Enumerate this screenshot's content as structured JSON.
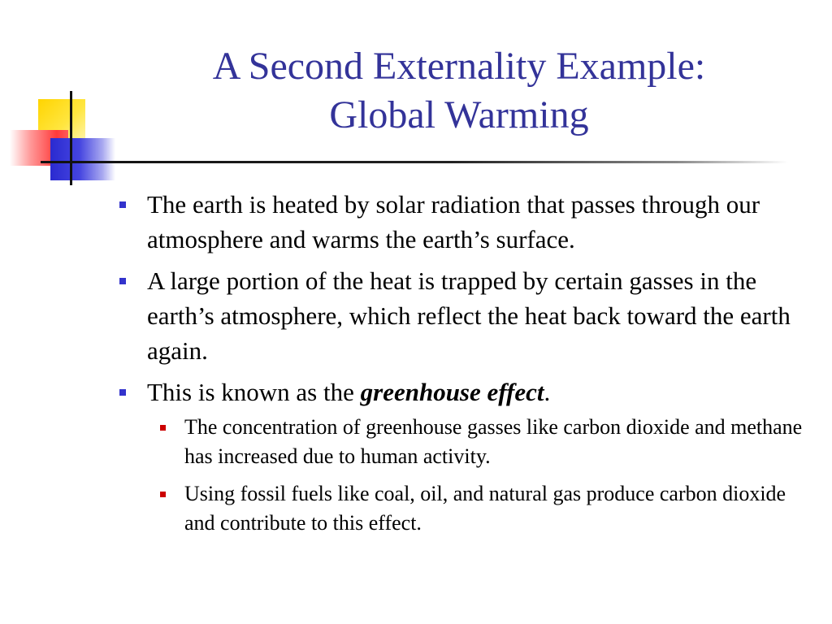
{
  "slide": {
    "title_line1": "A Second Externality Example:",
    "title_line2": "Global Warming",
    "bullets": [
      {
        "text": "The earth is heated by solar radiation that passes through our atmosphere and warms the earth’s surface."
      },
      {
        "text": "A large portion of the heat is trapped by certain gasses in the earth’s atmosphere, which reflect the heat back toward the earth again."
      },
      {
        "text_before": "This is known as the ",
        "emphasis": "greenhouse effect",
        "text_after": ".",
        "sub_bullets": [
          "The concentration of greenhouse gasses like carbon dioxide and methane has increased due to human activity.",
          "Using fossil fuels like coal, oil, and natural gas produce carbon dioxide and contribute to this effect."
        ]
      }
    ]
  },
  "colors": {
    "title": "#333399",
    "bullet_level1": "#3333cc",
    "bullet_level2": "#cc0000",
    "ornament_yellow": "#ffd400",
    "ornament_red": "#ff3a3a",
    "ornament_blue": "#2a2ad0"
  }
}
